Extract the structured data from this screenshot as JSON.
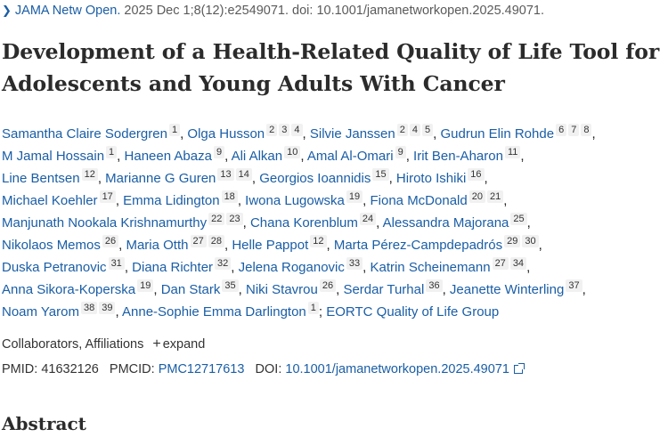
{
  "citation": {
    "journal": "JAMA Netw Open.",
    "details": " 2025 Dec 1;8(12):e2549071. doi: 10.1001/jamanetworkopen.2025.49071."
  },
  "title": "Development of a Health-Related Quality of Life Tool for Adolescents and Young Adults With Cancer",
  "author_lines": [
    [
      {
        "name": "Samantha Claire Sodergren",
        "affs": [
          "1"
        ]
      },
      {
        "name": "Olga Husson",
        "affs": [
          "2",
          "3",
          "4"
        ]
      },
      {
        "name": "Silvie Janssen",
        "affs": [
          "2",
          "4",
          "5"
        ]
      },
      {
        "name": "Gudrun Elin Rohde",
        "affs": [
          "6",
          "7",
          "8"
        ]
      }
    ],
    [
      {
        "name": "M Jamal Hossain",
        "affs": [
          "1"
        ]
      },
      {
        "name": "Haneen Abaza",
        "affs": [
          "9"
        ]
      },
      {
        "name": "Ali Alkan",
        "affs": [
          "10"
        ]
      },
      {
        "name": "Amal Al-Omari",
        "affs": [
          "9"
        ]
      },
      {
        "name": "Irit Ben-Aharon",
        "affs": [
          "11"
        ]
      }
    ],
    [
      {
        "name": "Line Bentsen",
        "affs": [
          "12"
        ]
      },
      {
        "name": "Marianne G Guren",
        "affs": [
          "13",
          "14"
        ]
      },
      {
        "name": "Georgios Ioannidis",
        "affs": [
          "15"
        ]
      },
      {
        "name": "Hiroto Ishiki",
        "affs": [
          "16"
        ]
      }
    ],
    [
      {
        "name": "Michael Koehler",
        "affs": [
          "17"
        ]
      },
      {
        "name": "Emma Lidington",
        "affs": [
          "18"
        ]
      },
      {
        "name": "Iwona Lugowska",
        "affs": [
          "19"
        ]
      },
      {
        "name": "Fiona McDonald",
        "affs": [
          "20",
          "21"
        ]
      }
    ],
    [
      {
        "name": "Manjunath Nookala Krishnamurthy",
        "affs": [
          "22",
          "23"
        ]
      },
      {
        "name": "Chana Korenblum",
        "affs": [
          "24"
        ]
      },
      {
        "name": "Alessandra Majorana",
        "affs": [
          "25"
        ]
      }
    ],
    [
      {
        "name": "Nikolaos Memos",
        "affs": [
          "26"
        ]
      },
      {
        "name": "Maria Otth",
        "affs": [
          "27",
          "28"
        ]
      },
      {
        "name": "Helle Pappot",
        "affs": [
          "12"
        ]
      },
      {
        "name": "Marta Pérez-Campdepadrós",
        "affs": [
          "29",
          "30"
        ]
      }
    ],
    [
      {
        "name": "Duska Petranovic",
        "affs": [
          "31"
        ]
      },
      {
        "name": "Diana Richter",
        "affs": [
          "32"
        ]
      },
      {
        "name": "Jelena Roganovic",
        "affs": [
          "33"
        ]
      },
      {
        "name": "Katrin Scheinemann",
        "affs": [
          "27",
          "34"
        ]
      }
    ],
    [
      {
        "name": "Anna Sikora-Koperska",
        "affs": [
          "19"
        ]
      },
      {
        "name": "Dan Stark",
        "affs": [
          "35"
        ]
      },
      {
        "name": "Niki Stavrou",
        "affs": [
          "26"
        ]
      },
      {
        "name": "Serdar Turhal",
        "affs": [
          "36"
        ]
      },
      {
        "name": "Jeanette Winterling",
        "affs": [
          "37"
        ]
      }
    ],
    [
      {
        "name": "Noam Yarom",
        "affs": [
          "38",
          "39"
        ]
      },
      {
        "name": "Anne-Sophie Emma Darlington",
        "affs": [
          "1"
        ]
      }
    ]
  ],
  "group_author": "EORTC Quality of Life Group",
  "collab_label": "Collaborators, Affiliations",
  "expand_label": "expand",
  "pmid_label": "PMID:",
  "pmid": "41632126",
  "pmcid_label": "PMCID:",
  "pmcid": "PMC12717613",
  "doi_label": "DOI:",
  "doi": "10.1001/jamanetworkopen.2025.49071",
  "abstract_heading": "Abstract",
  "colors": {
    "link": "#1a5ea6",
    "text": "#212121",
    "badge_bg": "#f1f1f1"
  }
}
